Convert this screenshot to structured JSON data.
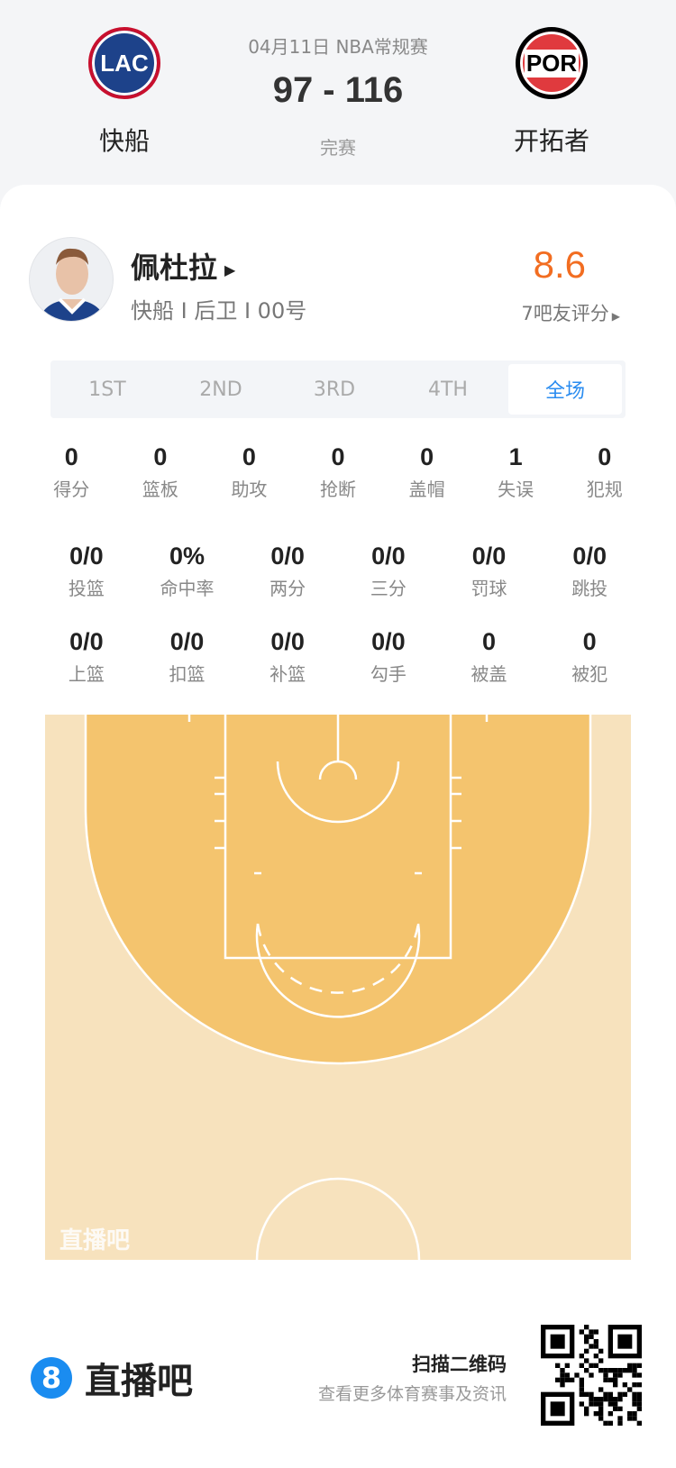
{
  "match": {
    "date": "04月11日 NBA常规赛",
    "score": "97 - 116",
    "status": "完赛",
    "home": {
      "abbr": "LAC",
      "name": "快船"
    },
    "away": {
      "abbr": "POR",
      "name": "开拓者"
    }
  },
  "player": {
    "name": "佩杜拉",
    "info": "快船 I 后卫 I 00号",
    "rating": "8.6",
    "rating_label": "7吧友评分"
  },
  "tabs": [
    "1ST",
    "2ND",
    "3RD",
    "4TH",
    "全场"
  ],
  "active_tab": "全场",
  "stats_row1": [
    {
      "v": "0",
      "l": "得分"
    },
    {
      "v": "0",
      "l": "篮板"
    },
    {
      "v": "0",
      "l": "助攻"
    },
    {
      "v": "0",
      "l": "抢断"
    },
    {
      "v": "0",
      "l": "盖帽"
    },
    {
      "v": "1",
      "l": "失误"
    },
    {
      "v": "0",
      "l": "犯规"
    }
  ],
  "stats_row2": [
    {
      "v": "0/0",
      "l": "投篮"
    },
    {
      "v": "0%",
      "l": "命中率"
    },
    {
      "v": "0/0",
      "l": "两分"
    },
    {
      "v": "0/0",
      "l": "三分"
    },
    {
      "v": "0/0",
      "l": "罚球"
    },
    {
      "v": "0/0",
      "l": "跳投"
    }
  ],
  "stats_row3": [
    {
      "v": "0/0",
      "l": "上篮"
    },
    {
      "v": "0/0",
      "l": "扣篮"
    },
    {
      "v": "0/0",
      "l": "补篮"
    },
    {
      "v": "0/0",
      "l": "勾手"
    },
    {
      "v": "0",
      "l": "被盖"
    },
    {
      "v": "0",
      "l": "被犯"
    }
  ],
  "court": {
    "watermark": "直播吧",
    "outer_color": "#f7e2bd",
    "inner_color": "#f4c46e"
  },
  "footer": {
    "brand_mark": "8",
    "brand": "直播吧",
    "scan": "扫描二维码",
    "scan_sub": "查看更多体育赛事及资讯"
  },
  "colors": {
    "accent": "#2a8cf0",
    "rating": "#f26d21"
  }
}
